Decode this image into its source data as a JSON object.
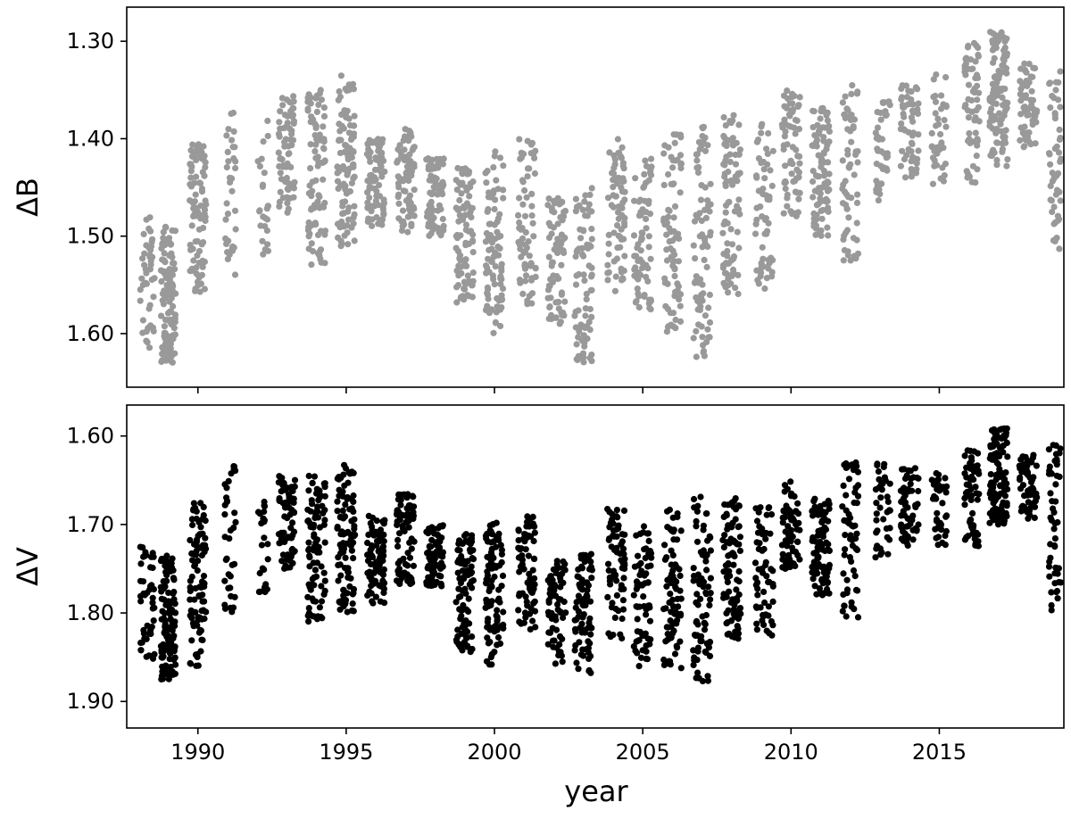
{
  "chart_data": [
    {
      "type": "scatter",
      "panel": "top",
      "xlabel": "",
      "ylabel": "ΔB",
      "xlim": [
        1987.6,
        2019.2
      ],
      "ylim": [
        1.655,
        1.265
      ],
      "y_inverted": true,
      "x_ticks": [
        1990,
        1995,
        2000,
        2005,
        2010,
        2015
      ],
      "x_tick_labels_shown": false,
      "y_ticks": [
        1.3,
        1.4,
        1.5,
        1.6
      ],
      "y_tick_labels": [
        "1.30",
        "1.40",
        "1.50",
        "1.60"
      ],
      "grid": false,
      "series": [
        {
          "color": "#999999",
          "seasons": [
            {
              "x": 1988.3,
              "width": 0.5,
              "y_min": 1.48,
              "y_max": 1.615,
              "n": 45
            },
            {
              "x": 1989.0,
              "width": 0.5,
              "y_min": 1.49,
              "y_max": 1.63,
              "n": 120
            },
            {
              "x": 1990.0,
              "width": 0.55,
              "y_min": 1.405,
              "y_max": 1.56,
              "n": 90
            },
            {
              "x": 1991.1,
              "width": 0.4,
              "y_min": 1.37,
              "y_max": 1.54,
              "n": 35
            },
            {
              "x": 1992.2,
              "width": 0.35,
              "y_min": 1.38,
              "y_max": 1.52,
              "n": 25
            },
            {
              "x": 1993.0,
              "width": 0.55,
              "y_min": 1.355,
              "y_max": 1.48,
              "n": 70
            },
            {
              "x": 1994.0,
              "width": 0.6,
              "y_min": 1.35,
              "y_max": 1.535,
              "n": 90
            },
            {
              "x": 1995.0,
              "width": 0.6,
              "y_min": 1.335,
              "y_max": 1.515,
              "n": 100
            },
            {
              "x": 1996.0,
              "width": 0.6,
              "y_min": 1.4,
              "y_max": 1.49,
              "n": 80
            },
            {
              "x": 1997.0,
              "width": 0.6,
              "y_min": 1.39,
              "y_max": 1.5,
              "n": 80
            },
            {
              "x": 1998.0,
              "width": 0.6,
              "y_min": 1.42,
              "y_max": 1.5,
              "n": 80
            },
            {
              "x": 1999.0,
              "width": 0.6,
              "y_min": 1.43,
              "y_max": 1.57,
              "n": 90
            },
            {
              "x": 2000.0,
              "width": 0.6,
              "y_min": 1.41,
              "y_max": 1.6,
              "n": 90
            },
            {
              "x": 2001.1,
              "width": 0.6,
              "y_min": 1.4,
              "y_max": 1.57,
              "n": 70
            },
            {
              "x": 2002.1,
              "width": 0.6,
              "y_min": 1.46,
              "y_max": 1.59,
              "n": 70
            },
            {
              "x": 2003.0,
              "width": 0.6,
              "y_min": 1.45,
              "y_max": 1.63,
              "n": 80
            },
            {
              "x": 2004.1,
              "width": 0.6,
              "y_min": 1.4,
              "y_max": 1.56,
              "n": 70
            },
            {
              "x": 2005.0,
              "width": 0.6,
              "y_min": 1.42,
              "y_max": 1.58,
              "n": 70
            },
            {
              "x": 2006.0,
              "width": 0.6,
              "y_min": 1.395,
              "y_max": 1.6,
              "n": 80
            },
            {
              "x": 2007.0,
              "width": 0.6,
              "y_min": 1.385,
              "y_max": 1.625,
              "n": 80
            },
            {
              "x": 2008.0,
              "width": 0.6,
              "y_min": 1.375,
              "y_max": 1.56,
              "n": 90
            },
            {
              "x": 2009.1,
              "width": 0.6,
              "y_min": 1.38,
              "y_max": 1.555,
              "n": 60
            },
            {
              "x": 2010.0,
              "width": 0.6,
              "y_min": 1.35,
              "y_max": 1.48,
              "n": 70
            },
            {
              "x": 2011.0,
              "width": 0.6,
              "y_min": 1.365,
              "y_max": 1.5,
              "n": 90
            },
            {
              "x": 2012.0,
              "width": 0.55,
              "y_min": 1.345,
              "y_max": 1.53,
              "n": 60
            },
            {
              "x": 2013.1,
              "width": 0.5,
              "y_min": 1.35,
              "y_max": 1.47,
              "n": 40
            },
            {
              "x": 2014.0,
              "width": 0.6,
              "y_min": 1.345,
              "y_max": 1.44,
              "n": 60
            },
            {
              "x": 2015.0,
              "width": 0.5,
              "y_min": 1.33,
              "y_max": 1.45,
              "n": 40
            },
            {
              "x": 2016.1,
              "width": 0.5,
              "y_min": 1.3,
              "y_max": 1.445,
              "n": 60
            },
            {
              "x": 2017.0,
              "width": 0.6,
              "y_min": 1.29,
              "y_max": 1.43,
              "n": 110
            },
            {
              "x": 2018.0,
              "width": 0.6,
              "y_min": 1.32,
              "y_max": 1.41,
              "n": 60
            },
            {
              "x": 2018.9,
              "width": 0.4,
              "y_min": 1.33,
              "y_max": 1.515,
              "n": 50
            }
          ]
        }
      ]
    },
    {
      "type": "scatter",
      "panel": "bottom",
      "xlabel": "year",
      "ylabel": "ΔV",
      "xlim": [
        1987.6,
        2019.2
      ],
      "ylim": [
        1.93,
        1.565
      ],
      "y_inverted": true,
      "x_ticks": [
        1990,
        1995,
        2000,
        2005,
        2010,
        2015
      ],
      "x_tick_labels": [
        "1990",
        "1995",
        "2000",
        "2005",
        "2010",
        "2015"
      ],
      "y_ticks": [
        1.6,
        1.7,
        1.8,
        1.9
      ],
      "y_tick_labels": [
        "1.60",
        "1.70",
        "1.80",
        "1.90"
      ],
      "grid": false,
      "series": [
        {
          "color": "#000000",
          "seasons": [
            {
              "x": 1988.3,
              "width": 0.5,
              "y_min": 1.725,
              "y_max": 1.86,
              "n": 45
            },
            {
              "x": 1989.0,
              "width": 0.5,
              "y_min": 1.735,
              "y_max": 1.875,
              "n": 120
            },
            {
              "x": 1990.0,
              "width": 0.55,
              "y_min": 1.675,
              "y_max": 1.86,
              "n": 90
            },
            {
              "x": 1991.1,
              "width": 0.4,
              "y_min": 1.63,
              "y_max": 1.8,
              "n": 35
            },
            {
              "x": 1992.2,
              "width": 0.35,
              "y_min": 1.67,
              "y_max": 1.785,
              "n": 25
            },
            {
              "x": 1993.0,
              "width": 0.55,
              "y_min": 1.645,
              "y_max": 1.75,
              "n": 70
            },
            {
              "x": 1994.0,
              "width": 0.6,
              "y_min": 1.645,
              "y_max": 1.81,
              "n": 90
            },
            {
              "x": 1995.0,
              "width": 0.6,
              "y_min": 1.63,
              "y_max": 1.8,
              "n": 100
            },
            {
              "x": 1996.0,
              "width": 0.6,
              "y_min": 1.69,
              "y_max": 1.79,
              "n": 80
            },
            {
              "x": 1997.0,
              "width": 0.6,
              "y_min": 1.665,
              "y_max": 1.77,
              "n": 80
            },
            {
              "x": 1998.0,
              "width": 0.6,
              "y_min": 1.7,
              "y_max": 1.77,
              "n": 80
            },
            {
              "x": 1999.0,
              "width": 0.6,
              "y_min": 1.71,
              "y_max": 1.845,
              "n": 90
            },
            {
              "x": 2000.0,
              "width": 0.6,
              "y_min": 1.695,
              "y_max": 1.86,
              "n": 90
            },
            {
              "x": 2001.1,
              "width": 0.6,
              "y_min": 1.69,
              "y_max": 1.82,
              "n": 70
            },
            {
              "x": 2002.1,
              "width": 0.6,
              "y_min": 1.74,
              "y_max": 1.86,
              "n": 70
            },
            {
              "x": 2003.0,
              "width": 0.6,
              "y_min": 1.73,
              "y_max": 1.87,
              "n": 80
            },
            {
              "x": 2004.1,
              "width": 0.6,
              "y_min": 1.68,
              "y_max": 1.83,
              "n": 70
            },
            {
              "x": 2005.0,
              "width": 0.6,
              "y_min": 1.7,
              "y_max": 1.86,
              "n": 70
            },
            {
              "x": 2006.0,
              "width": 0.6,
              "y_min": 1.68,
              "y_max": 1.865,
              "n": 80
            },
            {
              "x": 2007.0,
              "width": 0.6,
              "y_min": 1.665,
              "y_max": 1.88,
              "n": 80
            },
            {
              "x": 2008.0,
              "width": 0.6,
              "y_min": 1.67,
              "y_max": 1.83,
              "n": 90
            },
            {
              "x": 2009.1,
              "width": 0.6,
              "y_min": 1.68,
              "y_max": 1.83,
              "n": 60
            },
            {
              "x": 2010.0,
              "width": 0.6,
              "y_min": 1.65,
              "y_max": 1.75,
              "n": 70
            },
            {
              "x": 2011.0,
              "width": 0.6,
              "y_min": 1.67,
              "y_max": 1.78,
              "n": 90
            },
            {
              "x": 2012.0,
              "width": 0.55,
              "y_min": 1.63,
              "y_max": 1.805,
              "n": 60
            },
            {
              "x": 2013.1,
              "width": 0.5,
              "y_min": 1.63,
              "y_max": 1.74,
              "n": 40
            },
            {
              "x": 2014.0,
              "width": 0.6,
              "y_min": 1.635,
              "y_max": 1.725,
              "n": 60
            },
            {
              "x": 2015.0,
              "width": 0.5,
              "y_min": 1.64,
              "y_max": 1.725,
              "n": 40
            },
            {
              "x": 2016.1,
              "width": 0.5,
              "y_min": 1.615,
              "y_max": 1.725,
              "n": 60
            },
            {
              "x": 2017.0,
              "width": 0.6,
              "y_min": 1.59,
              "y_max": 1.7,
              "n": 110
            },
            {
              "x": 2018.0,
              "width": 0.6,
              "y_min": 1.62,
              "y_max": 1.695,
              "n": 60
            },
            {
              "x": 2018.9,
              "width": 0.4,
              "y_min": 1.61,
              "y_max": 1.8,
              "n": 50
            }
          ]
        }
      ]
    }
  ]
}
